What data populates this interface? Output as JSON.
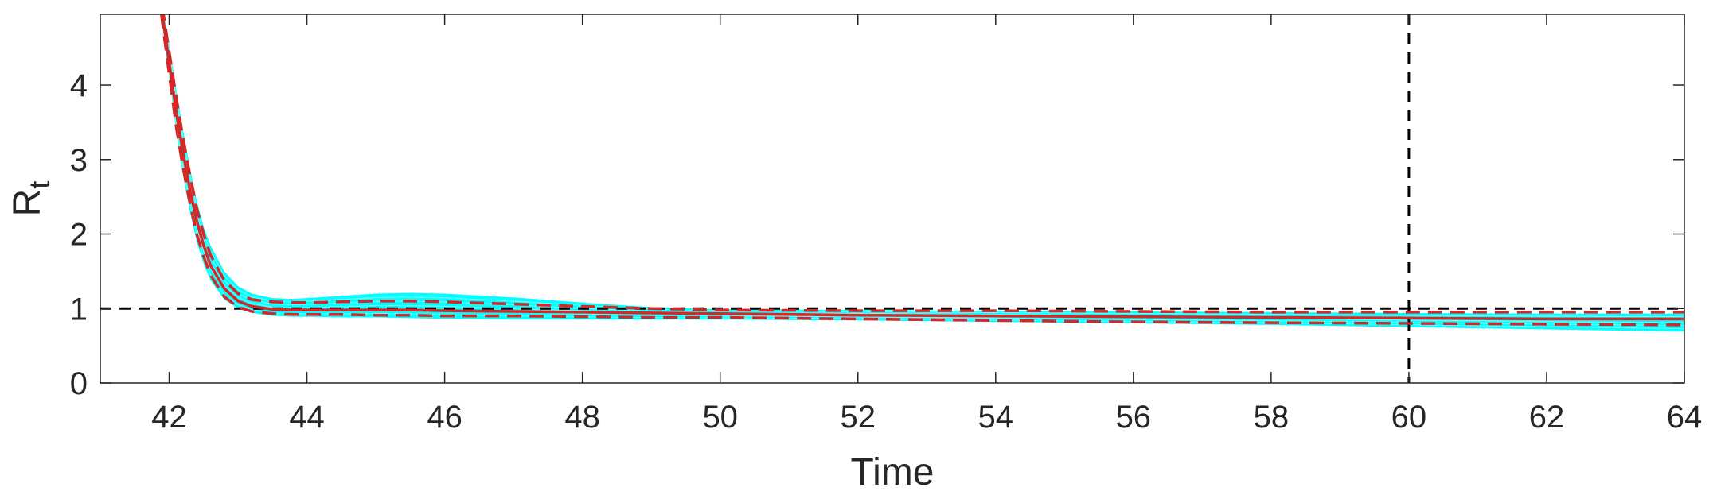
{
  "chart_data": {
    "type": "line",
    "xlabel": "Time",
    "ylabel": "R",
    "ylabel_subscript": "t",
    "xlim": [
      41,
      64
    ],
    "ylim": [
      0,
      4.95
    ],
    "xticks": [
      "42",
      "44",
      "46",
      "48",
      "50",
      "52",
      "54",
      "56",
      "58",
      "60",
      "62",
      "64"
    ],
    "yticks": [
      "0",
      "1",
      "2",
      "3",
      "4"
    ],
    "grid": false,
    "reference_lines": {
      "horizontal_y": 1,
      "vertical_x": 60
    },
    "colors": {
      "band": "#00ffff",
      "estimate": "#d62728",
      "reference": "#000000",
      "axes": "#262626"
    },
    "x": [
      41.85,
      41.9,
      42.0,
      42.1,
      42.2,
      42.3,
      42.4,
      42.5,
      42.6,
      42.8,
      43.0,
      43.2,
      43.5,
      43.8,
      44.0,
      44.5,
      45.0,
      45.5,
      46.0,
      47.0,
      48.0,
      49.0,
      50.0,
      52.0,
      54.0,
      56.0,
      58.0,
      60.0,
      62.0,
      64.0
    ],
    "series": [
      {
        "role": "ensemble-upper",
        "values": [
          5.4,
          5.1,
          4.55,
          3.95,
          3.4,
          2.9,
          2.45,
          2.1,
          1.85,
          1.5,
          1.3,
          1.2,
          1.14,
          1.13,
          1.14,
          1.17,
          1.2,
          1.21,
          1.2,
          1.15,
          1.08,
          1.02,
          0.99,
          0.98,
          0.97,
          0.96,
          0.95,
          0.94,
          0.93,
          0.93
        ]
      },
      {
        "role": "ensemble-lower",
        "values": [
          5.3,
          4.8,
          4.1,
          3.4,
          2.8,
          2.3,
          1.9,
          1.6,
          1.38,
          1.12,
          1.0,
          0.94,
          0.9,
          0.89,
          0.89,
          0.88,
          0.88,
          0.87,
          0.86,
          0.85,
          0.85,
          0.85,
          0.85,
          0.84,
          0.82,
          0.8,
          0.78,
          0.75,
          0.72,
          0.69
        ]
      },
      {
        "role": "upper-bound",
        "style": "dashed",
        "values": [
          5.35,
          5.05,
          4.45,
          3.85,
          3.3,
          2.8,
          2.35,
          2.0,
          1.72,
          1.38,
          1.2,
          1.12,
          1.09,
          1.08,
          1.08,
          1.09,
          1.1,
          1.1,
          1.09,
          1.06,
          1.03,
          1.0,
          0.98,
          0.97,
          0.97,
          0.96,
          0.95,
          0.95,
          0.95,
          0.95
        ]
      },
      {
        "role": "mean",
        "style": "solid",
        "values": [
          5.3,
          4.95,
          4.3,
          3.65,
          3.1,
          2.6,
          2.18,
          1.85,
          1.58,
          1.27,
          1.1,
          1.03,
          0.99,
          0.98,
          0.98,
          0.98,
          0.98,
          0.98,
          0.97,
          0.96,
          0.95,
          0.94,
          0.93,
          0.91,
          0.9,
          0.89,
          0.88,
          0.87,
          0.86,
          0.86
        ]
      },
      {
        "role": "lower-bound",
        "style": "dashed",
        "values": [
          5.25,
          4.85,
          4.15,
          3.45,
          2.9,
          2.42,
          2.0,
          1.7,
          1.45,
          1.16,
          1.02,
          0.96,
          0.93,
          0.92,
          0.92,
          0.92,
          0.91,
          0.91,
          0.9,
          0.9,
          0.89,
          0.88,
          0.88,
          0.86,
          0.84,
          0.82,
          0.81,
          0.8,
          0.79,
          0.78
        ]
      }
    ]
  }
}
